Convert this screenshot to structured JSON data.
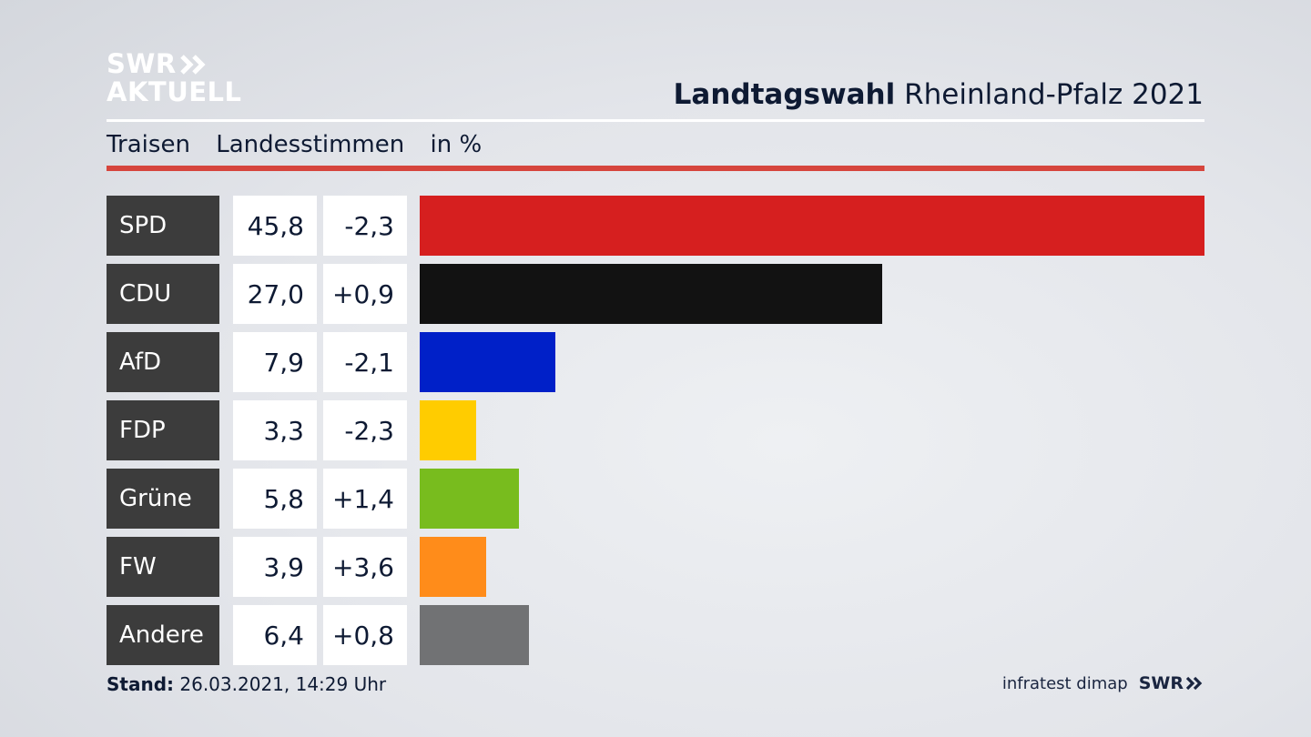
{
  "logo": {
    "line1": "SWR",
    "line2": "AKTUELL"
  },
  "header": {
    "title_bold": "Landtagswahl",
    "title_rest": "Rheinland-Pfalz 2021"
  },
  "subheader": {
    "place": "Traisen",
    "measure": "Landesstimmen",
    "unit": "in %"
  },
  "footer": {
    "stand_label": "Stand:",
    "stand_value": "26.03.2021, 14:29 Uhr",
    "source": "infratest dimap",
    "brand": "SWR"
  },
  "chart_data": {
    "type": "bar",
    "orientation": "horizontal",
    "categories": [
      "SPD",
      "CDU",
      "AfD",
      "FDP",
      "Grüne",
      "FW",
      "Andere"
    ],
    "values": [
      45.8,
      27.0,
      7.9,
      3.3,
      5.8,
      3.9,
      6.4
    ],
    "value_labels": [
      "45,8",
      "27,0",
      "7,9",
      "3,3",
      "5,8",
      "3,9",
      "6,4"
    ],
    "diff_labels": [
      "-2,3",
      "+0,9",
      "-2,1",
      "-2,3",
      "+1,4",
      "+3,6",
      "+0,8"
    ],
    "colors": [
      "#d61f1f",
      "#121212",
      "#0020c8",
      "#ffcc00",
      "#78bc1e",
      "#ff8c1a",
      "#717274"
    ],
    "xlim": [
      0,
      45.8
    ],
    "grid": false
  }
}
